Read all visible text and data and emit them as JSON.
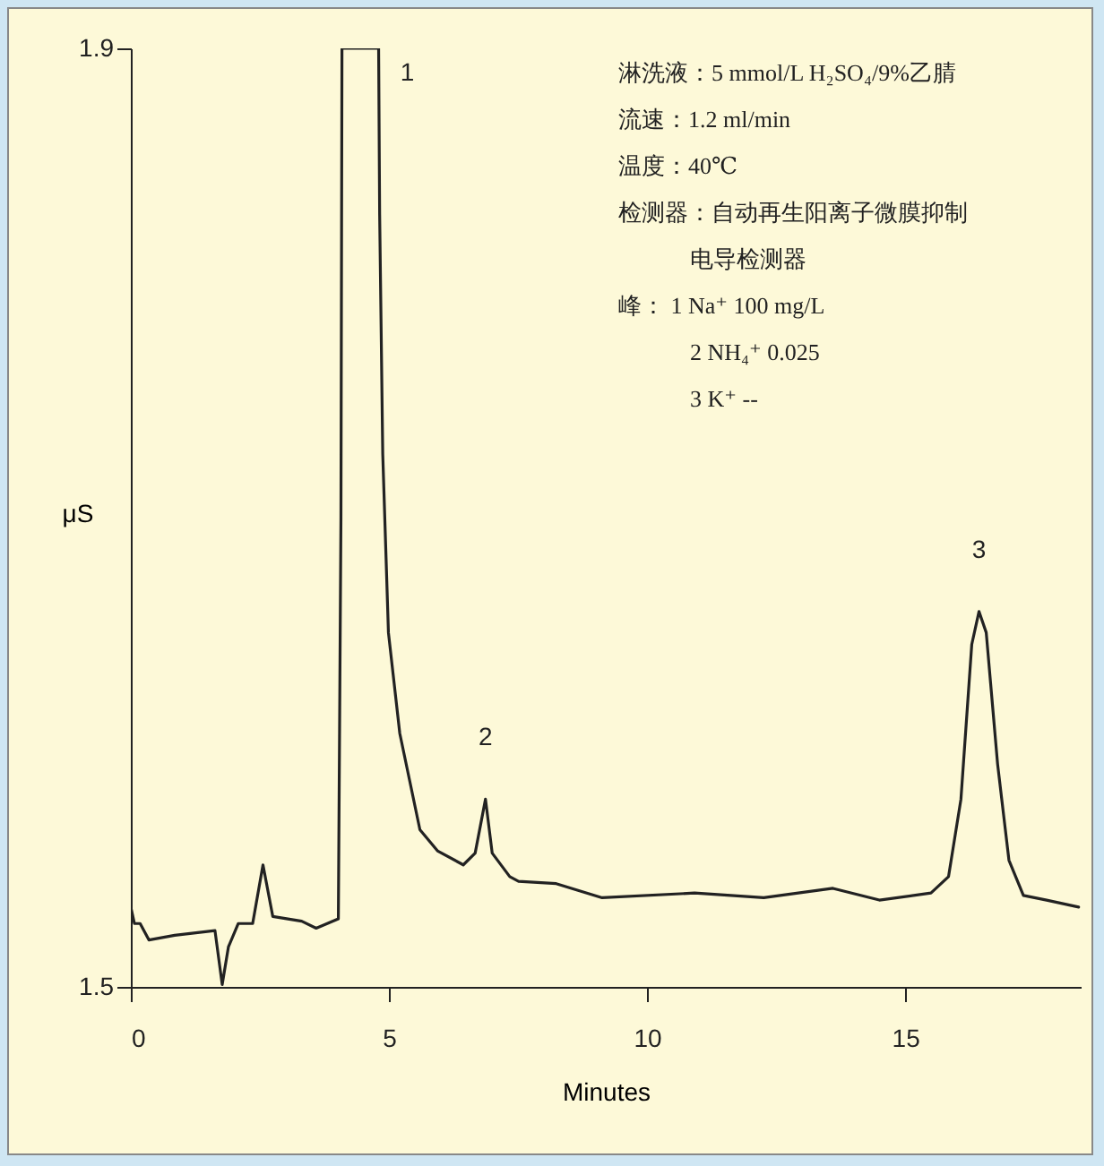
{
  "chart_data": {
    "type": "line",
    "xlabel": "Minutes",
    "ylabel": "μS",
    "xlim": [
      0,
      18.4
    ],
    "ylim": [
      1.5,
      1.9
    ],
    "xticks": [
      0,
      5,
      10,
      15
    ],
    "yticks": [
      1.5,
      1.9
    ],
    "x": [
      0.01,
      0.07,
      0.18,
      0.35,
      0.85,
      1.63,
      1.77,
      1.89,
      2.08,
      2.36,
      2.56,
      2.75,
      3.31,
      3.59,
      4.02,
      4.07,
      4.09,
      4.8,
      4.82,
      4.88,
      4.99,
      5.21,
      5.6,
      5.94,
      6.44,
      6.67,
      6.87,
      7.0,
      7.34,
      7.51,
      8.24,
      9.13,
      10.92,
      12.26,
      13.6,
      14.5,
      15.5,
      15.84,
      16.08,
      16.29,
      16.43,
      16.57,
      16.79,
      17.01,
      17.29,
      17.74,
      18.36
    ],
    "series": [
      {
        "color": "#222222",
        "values": [
          1.533,
          1.527,
          1.527,
          1.52,
          1.522,
          1.524,
          1.501,
          1.517,
          1.527,
          1.527,
          1.552,
          1.53,
          1.528,
          1.525,
          1.529,
          1.7,
          1.9,
          1.9,
          1.829,
          1.727,
          1.651,
          1.608,
          1.567,
          1.558,
          1.552,
          1.557,
          1.58,
          1.557,
          1.547,
          1.545,
          1.544,
          1.538,
          1.54,
          1.538,
          1.542,
          1.537,
          1.54,
          1.547,
          1.58,
          1.646,
          1.66,
          1.651,
          1.595,
          1.554,
          1.539,
          1.537,
          1.534
        ]
      }
    ],
    "annotations": [
      {
        "text": "1",
        "x": 4.8,
        "y": 1.9
      },
      {
        "text": "2",
        "x": 6.87,
        "y": 1.58
      },
      {
        "text": "3",
        "x": 16.43,
        "y": 1.66
      },
      "淋洗液：5 mmol/L  H₂SO₄/9%乙腈",
      "流速：1.2 ml/min",
      "温度：40℃",
      "检测器：自动再生阳离子微膜抑制",
      "电导检测器",
      "峰：  1    Na⁺   100    mg/L",
      "2    NH₄⁺  0.025",
      "3    K⁺     --"
    ]
  }
}
